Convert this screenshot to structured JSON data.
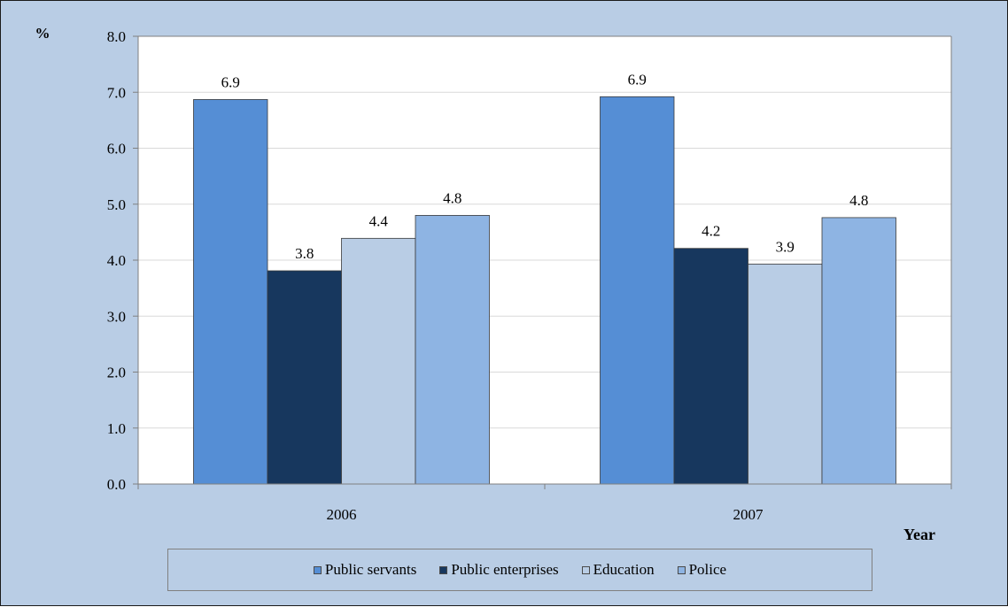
{
  "chart_data": {
    "type": "bar",
    "ylabel": "%",
    "xlabel": "Year",
    "categories": [
      "2006",
      "2007"
    ],
    "ylim": [
      0,
      8
    ],
    "yticks": [
      "0.0",
      "1.0",
      "2.0",
      "3.0",
      "4.0",
      "5.0",
      "6.0",
      "7.0",
      "8.0"
    ],
    "grid": true,
    "legend_position": "bottom",
    "series": [
      {
        "name": "Public servants",
        "values": [
          6.9,
          6.9
        ],
        "plotted": [
          6.87,
          6.92
        ],
        "labels": [
          "6.9",
          "6.9"
        ],
        "color": "#558ed5"
      },
      {
        "name": "Public enterprises",
        "values": [
          3.8,
          4.2
        ],
        "plotted": [
          3.81,
          4.21
        ],
        "labels": [
          "3.8",
          "4.2"
        ],
        "color": "#17375e"
      },
      {
        "name": "Education",
        "values": [
          4.4,
          3.9
        ],
        "plotted": [
          4.39,
          3.93
        ],
        "labels": [
          "4.4",
          "3.9"
        ],
        "color": "#b9cde5"
      },
      {
        "name": "Police",
        "values": [
          4.8,
          4.8
        ],
        "plotted": [
          4.8,
          4.76
        ],
        "labels": [
          "4.8",
          "4.8"
        ],
        "color": "#8eb4e3"
      }
    ]
  }
}
